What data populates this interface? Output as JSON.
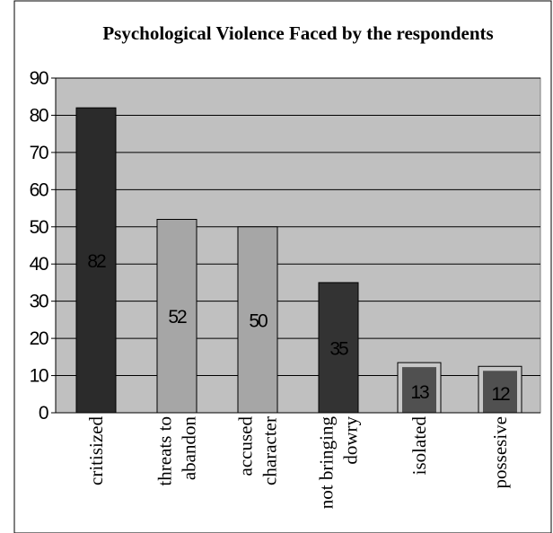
{
  "chart_data": {
    "type": "bar",
    "title": "Psychological Violence Faced by the respondents",
    "xlabel": "",
    "ylabel": "",
    "ylim": [
      0,
      90
    ],
    "yticks": [
      0,
      10,
      20,
      30,
      40,
      50,
      60,
      70,
      80,
      90
    ],
    "grid": true,
    "legend": "none",
    "categories": [
      {
        "lines": [
          "critisized"
        ]
      },
      {
        "lines": [
          "threats to",
          "abandon"
        ]
      },
      {
        "lines": [
          "accused",
          "character"
        ]
      },
      {
        "lines": [
          "not bringing",
          "dowry"
        ]
      },
      {
        "lines": [
          "isolated"
        ]
      },
      {
        "lines": [
          "possesive"
        ]
      }
    ],
    "values": [
      82,
      52,
      50,
      35,
      13,
      12
    ],
    "data_labels": [
      "82",
      "52",
      "50",
      "35",
      "13",
      "12"
    ],
    "colors": {
      "plot_background": "#c0c0c0",
      "gridline": "#000000",
      "bars": [
        "#2b2b2b",
        "#a6a6a6",
        "#a6a6a6",
        "#333333",
        "#505050",
        "#505050"
      ],
      "bar_outline": "#000000",
      "small_bar_halo": "#c8c8c8"
    }
  }
}
